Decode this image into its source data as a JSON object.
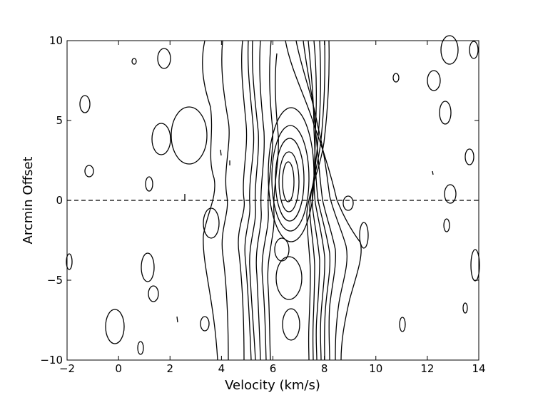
{
  "chart_data": {
    "type": "contour",
    "title": "",
    "xlabel": "Velocity (km/s)",
    "ylabel": "Arcmin Offset",
    "xlim": [
      -2,
      14
    ],
    "ylim": [
      -10,
      10
    ],
    "x_ticks": [
      -2,
      0,
      2,
      4,
      6,
      8,
      10,
      12,
      14
    ],
    "x_tick_labels": [
      "−2",
      "0",
      "2",
      "4",
      "6",
      "8",
      "10",
      "12",
      "14"
    ],
    "y_ticks": [
      -10,
      -5,
      0,
      5,
      10
    ],
    "y_tick_labels": [
      "−10",
      "−5",
      "0",
      "5",
      "10"
    ],
    "grid": false,
    "reference_line": {
      "y": 0,
      "style": "dashed"
    },
    "features": [
      {
        "name": "peak-upper",
        "x": 6.55,
        "y": 1.0
      },
      {
        "name": "ridge-left",
        "x": 5.4,
        "y": -8.0
      },
      {
        "name": "ridge-right",
        "x": 7.6,
        "y": -7.5
      }
    ]
  }
}
